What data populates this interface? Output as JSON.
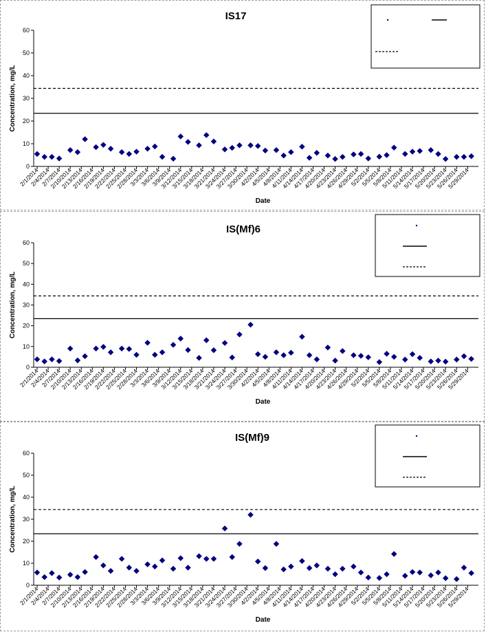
{
  "chart_data": [
    {
      "type": "scatter",
      "title": "IS17",
      "xlabel": "Date",
      "ylabel": "Concentration, mg/L",
      "ylim": [
        0,
        60
      ],
      "yticks": [
        0,
        10,
        20,
        30,
        40,
        50,
        60
      ],
      "xlim": [
        "2/1/2014",
        "5/31/2014"
      ],
      "xtick_labels": [
        "2/1/2014",
        "2/4/2014",
        "2/7/2014",
        "2/10/2014",
        "2/13/2014",
        "2/16/2014",
        "2/19/2014",
        "2/22/2014",
        "2/25/2014",
        "2/28/2014",
        "3/3/2014",
        "3/6/2014",
        "3/9/2014",
        "3/12/2014",
        "3/15/2014",
        "3/18/2014",
        "3/21/2014",
        "3/24/2014",
        "3/27/2014",
        "3/30/2014",
        "4/2/2014",
        "4/5/2014",
        "4/8/2014",
        "4/11/2014",
        "4/14/2014",
        "4/17/2014",
        "4/20/2014",
        "4/23/2014",
        "4/26/2014",
        "4/29/2014",
        "5/2/2014",
        "5/5/2014",
        "5/8/2014",
        "5/11/2014",
        "5/14/2014",
        "5/17/2014",
        "5/20/2014",
        "5/23/2014",
        "5/26/2014",
        "5/29/2014"
      ],
      "grid": false,
      "legend_position": "top-right",
      "reference_lines": [
        {
          "style": "solid",
          "y": 23.4
        },
        {
          "style": "dashed",
          "y": 34.4
        }
      ],
      "points": [
        [
          "2/1/2014",
          5.5
        ],
        [
          "2/3/2014",
          4.2
        ],
        [
          "2/5/2014",
          4.2
        ],
        [
          "2/7/2014",
          3.5
        ],
        [
          "2/10/2014",
          7.2
        ],
        [
          "2/12/2014",
          6.3
        ],
        [
          "2/14/2014",
          12.0
        ],
        [
          "2/17/2014",
          8.5
        ],
        [
          "2/19/2014",
          9.5
        ],
        [
          "2/21/2014",
          7.8
        ],
        [
          "2/24/2014",
          6.3
        ],
        [
          "2/26/2014",
          5.5
        ],
        [
          "2/28/2014",
          6.5
        ],
        [
          "3/3/2014",
          7.8
        ],
        [
          "3/5/2014",
          8.8
        ],
        [
          "3/7/2014",
          4.2
        ],
        [
          "3/10/2014",
          3.4
        ],
        [
          "3/12/2014",
          13.2
        ],
        [
          "3/14/2014",
          10.8
        ],
        [
          "3/17/2014",
          9.3
        ],
        [
          "3/19/2014",
          13.8
        ],
        [
          "3/21/2014",
          11.0
        ],
        [
          "3/24/2014",
          7.5
        ],
        [
          "3/26/2014",
          8.2
        ],
        [
          "3/28/2014",
          9.3
        ],
        [
          "3/31/2014",
          9.3
        ],
        [
          "4/2/2014",
          9.0
        ],
        [
          "4/4/2014",
          7.0
        ],
        [
          "4/7/2014",
          7.2
        ],
        [
          "4/9/2014",
          4.8
        ],
        [
          "4/11/2014",
          6.3
        ],
        [
          "4/14/2014",
          8.7
        ],
        [
          "4/16/2014",
          3.8
        ],
        [
          "4/18/2014",
          6.0
        ],
        [
          "4/21/2014",
          4.8
        ],
        [
          "4/23/2014",
          3.3
        ],
        [
          "4/25/2014",
          4.2
        ],
        [
          "4/28/2014",
          5.3
        ],
        [
          "4/30/2014",
          5.5
        ],
        [
          "5/2/2014",
          3.5
        ],
        [
          "5/5/2014",
          4.3
        ],
        [
          "5/7/2014",
          5.0
        ],
        [
          "5/9/2014",
          8.3
        ],
        [
          "5/12/2014",
          5.5
        ],
        [
          "5/14/2014",
          6.5
        ],
        [
          "5/16/2014",
          6.8
        ],
        [
          "5/19/2014",
          7.2
        ],
        [
          "5/21/2014",
          5.5
        ],
        [
          "5/23/2014",
          3.3
        ],
        [
          "5/26/2014",
          4.2
        ],
        [
          "5/28/2014",
          4.2
        ],
        [
          "5/30/2014",
          4.5
        ]
      ]
    },
    {
      "type": "scatter",
      "title": "IS(Mf)6",
      "xlabel": "Date",
      "ylabel": "Concentration, mg/L",
      "ylim": [
        0,
        60
      ],
      "yticks": [
        0,
        10,
        20,
        30,
        40,
        50,
        60
      ],
      "xlim": [
        "2/1/2014",
        "5/31/2014"
      ],
      "xtick_labels": [
        "2/1/2014",
        "2/4/2014",
        "2/7/2014",
        "2/10/2014",
        "2/13/2014",
        "2/16/2014",
        "2/19/2014",
        "2/22/2014",
        "2/25/2014",
        "2/28/2014",
        "3/3/2014",
        "3/6/2014",
        "3/9/2014",
        "3/12/2014",
        "3/15/2014",
        "3/18/2014",
        "3/21/2014",
        "3/24/2014",
        "3/27/2014",
        "3/30/2014",
        "4/2/2014",
        "4/5/2014",
        "4/8/2014",
        "4/11/2014",
        "4/14/2014",
        "4/17/2014",
        "4/20/2014",
        "4/23/2014",
        "4/26/2014",
        "4/29/2014",
        "5/2/2014",
        "5/5/2014",
        "5/8/2014",
        "5/11/2014",
        "5/14/2014",
        "5/17/2014",
        "5/20/2014",
        "5/23/2014",
        "5/26/2014",
        "5/29/2014"
      ],
      "grid": false,
      "legend_position": "top-right",
      "reference_lines": [
        {
          "style": "solid",
          "y": 23.4
        },
        {
          "style": "dashed",
          "y": 34.4
        }
      ],
      "points": [
        [
          "2/1/2014",
          3.8
        ],
        [
          "2/3/2014",
          2.8
        ],
        [
          "2/5/2014",
          3.8
        ],
        [
          "2/7/2014",
          3.0
        ],
        [
          "2/10/2014",
          9.0
        ],
        [
          "2/12/2014",
          3.3
        ],
        [
          "2/14/2014",
          5.3
        ],
        [
          "2/17/2014",
          9.0
        ],
        [
          "2/19/2014",
          9.8
        ],
        [
          "2/21/2014",
          7.2
        ],
        [
          "2/24/2014",
          9.0
        ],
        [
          "2/26/2014",
          8.8
        ],
        [
          "2/28/2014",
          6.0
        ],
        [
          "3/3/2014",
          11.8
        ],
        [
          "3/5/2014",
          6.0
        ],
        [
          "3/7/2014",
          7.2
        ],
        [
          "3/10/2014",
          10.8
        ],
        [
          "3/12/2014",
          13.8
        ],
        [
          "3/14/2014",
          8.3
        ],
        [
          "3/17/2014",
          4.5
        ],
        [
          "3/19/2014",
          13.0
        ],
        [
          "3/21/2014",
          8.2
        ],
        [
          "3/24/2014",
          11.7
        ],
        [
          "3/26/2014",
          4.7
        ],
        [
          "3/28/2014",
          15.8
        ],
        [
          "3/31/2014",
          20.5
        ],
        [
          "4/2/2014",
          6.3
        ],
        [
          "4/4/2014",
          5.0
        ],
        [
          "4/7/2014",
          7.2
        ],
        [
          "4/9/2014",
          5.8
        ],
        [
          "4/11/2014",
          7.0
        ],
        [
          "4/14/2014",
          14.7
        ],
        [
          "4/16/2014",
          5.8
        ],
        [
          "4/18/2014",
          3.8
        ],
        [
          "4/21/2014",
          9.5
        ],
        [
          "4/23/2014",
          3.2
        ],
        [
          "4/25/2014",
          7.8
        ],
        [
          "4/28/2014",
          5.8
        ],
        [
          "4/30/2014",
          5.5
        ],
        [
          "5/2/2014",
          4.8
        ],
        [
          "5/5/2014",
          2.5
        ],
        [
          "5/7/2014",
          6.5
        ],
        [
          "5/9/2014",
          5.0
        ],
        [
          "5/12/2014",
          3.7
        ],
        [
          "5/14/2014",
          6.3
        ],
        [
          "5/16/2014",
          4.5
        ],
        [
          "5/19/2014",
          2.8
        ],
        [
          "5/21/2014",
          3.2
        ],
        [
          "5/23/2014",
          2.7
        ],
        [
          "5/26/2014",
          3.7
        ],
        [
          "5/28/2014",
          5.3
        ],
        [
          "5/30/2014",
          4.0
        ]
      ]
    },
    {
      "type": "scatter",
      "title": "IS(Mf)9",
      "xlabel": "Date",
      "ylabel": "Concentration, mg/L",
      "ylim": [
        0,
        60
      ],
      "yticks": [
        0,
        10,
        20,
        30,
        40,
        50,
        60
      ],
      "xlim": [
        "2/1/2014",
        "5/31/2014"
      ],
      "xtick_labels": [
        "2/1/2014",
        "2/4/2014",
        "2/7/2014",
        "2/10/2014",
        "2/13/2014",
        "2/16/2014",
        "2/19/2014",
        "2/22/2014",
        "2/25/2014",
        "2/28/2014",
        "3/3/2014",
        "3/6/2014",
        "3/9/2014",
        "3/12/2014",
        "3/15/2014",
        "3/18/2014",
        "3/21/2014",
        "3/24/2014",
        "3/27/2014",
        "3/30/2014",
        "4/2/2014",
        "4/5/2014",
        "4/8/2014",
        "4/11/2014",
        "4/14/2014",
        "4/17/2014",
        "4/20/2014",
        "4/23/2014",
        "4/26/2014",
        "4/29/2014",
        "5/2/2014",
        "5/5/2014",
        "5/8/2014",
        "5/11/2014",
        "5/14/2014",
        "5/17/2014",
        "5/20/2014",
        "5/23/2014",
        "5/26/2014",
        "5/29/2014"
      ],
      "grid": false,
      "legend_position": "top-right",
      "reference_lines": [
        {
          "style": "solid",
          "y": 23.4
        },
        {
          "style": "dashed",
          "y": 34.4
        }
      ],
      "points": [
        [
          "2/1/2014",
          5.8
        ],
        [
          "2/3/2014",
          3.7
        ],
        [
          "2/5/2014",
          5.5
        ],
        [
          "2/7/2014",
          3.5
        ],
        [
          "2/10/2014",
          4.8
        ],
        [
          "2/12/2014",
          3.7
        ],
        [
          "2/14/2014",
          6.0
        ],
        [
          "2/17/2014",
          12.8
        ],
        [
          "2/19/2014",
          9.0
        ],
        [
          "2/21/2014",
          6.5
        ],
        [
          "2/24/2014",
          12.0
        ],
        [
          "2/26/2014",
          8.0
        ],
        [
          "2/28/2014",
          6.5
        ],
        [
          "3/3/2014",
          9.5
        ],
        [
          "3/5/2014",
          8.5
        ],
        [
          "3/7/2014",
          11.3
        ],
        [
          "3/10/2014",
          7.5
        ],
        [
          "3/12/2014",
          12.3
        ],
        [
          "3/14/2014",
          8.0
        ],
        [
          "3/17/2014",
          13.2
        ],
        [
          "3/19/2014",
          12.0
        ],
        [
          "3/21/2014",
          12.0
        ],
        [
          "3/24/2014",
          25.8
        ],
        [
          "3/26/2014",
          12.8
        ],
        [
          "3/28/2014",
          18.8
        ],
        [
          "3/31/2014",
          32.0
        ],
        [
          "4/2/2014",
          10.8
        ],
        [
          "4/4/2014",
          7.8
        ],
        [
          "4/7/2014",
          18.8
        ],
        [
          "4/9/2014",
          7.2
        ],
        [
          "4/11/2014",
          8.5
        ],
        [
          "4/14/2014",
          11.0
        ],
        [
          "4/16/2014",
          7.8
        ],
        [
          "4/18/2014",
          9.0
        ],
        [
          "4/21/2014",
          7.5
        ],
        [
          "4/23/2014",
          5.0
        ],
        [
          "4/25/2014",
          7.5
        ],
        [
          "4/28/2014",
          8.5
        ],
        [
          "4/30/2014",
          5.8
        ],
        [
          "5/2/2014",
          3.5
        ],
        [
          "5/5/2014",
          3.3
        ],
        [
          "5/7/2014",
          5.0
        ],
        [
          "5/9/2014",
          14.2
        ],
        [
          "5/12/2014",
          4.3
        ],
        [
          "5/14/2014",
          6.0
        ],
        [
          "5/16/2014",
          5.8
        ],
        [
          "5/19/2014",
          4.5
        ],
        [
          "5/21/2014",
          5.8
        ],
        [
          "5/23/2014",
          3.2
        ],
        [
          "5/26/2014",
          2.8
        ],
        [
          "5/28/2014",
          8.0
        ],
        [
          "5/30/2014",
          5.5
        ]
      ]
    }
  ],
  "colors": {
    "marker": "#000080",
    "line": "#000000",
    "axis": "#000000"
  }
}
